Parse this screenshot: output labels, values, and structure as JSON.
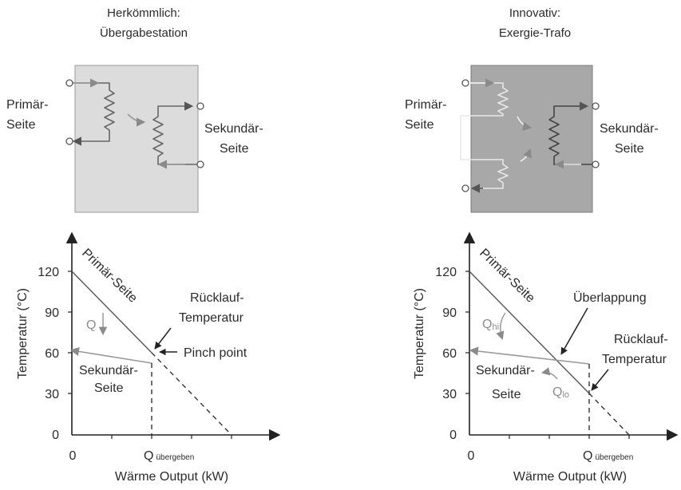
{
  "left_panel": {
    "title_line1": "Herkömmlich:",
    "title_line2": "Übergabestation",
    "primary_line1": "Primär-",
    "primary_line2": "Seite",
    "secondary_line1": "Sekundär-",
    "secondary_line2": "Seite",
    "box_fill": "#dcdcdc"
  },
  "right_panel": {
    "title_line1": "Innovativ:",
    "title_line2": "Exergie-Trafo",
    "primary_line1": "Primär-",
    "primary_line2": "Seite",
    "secondary_line1": "Sekundär-",
    "secondary_line2": "Seite",
    "box_fill": "#a8a8a8"
  },
  "charts": {
    "left": {
      "ylabel": "Temperatur (°C)",
      "xlabel": "Wärme Output (kW)",
      "y_ticks": [
        "0",
        "30",
        "60",
        "90",
        "120"
      ],
      "x_zero": "0",
      "x_q": "Q",
      "x_q_sub": "übergeben",
      "label_primary": "Primär-Seite",
      "label_secondary_line1": "Sekundär-",
      "label_secondary_line2": "Seite",
      "label_q": "Q",
      "label_return_line1": "Rücklauf-",
      "label_return_line2": "Temperatur",
      "label_pinch": "Pinch point"
    },
    "right": {
      "ylabel": "Temperatur (°C)",
      "xlabel": "Wärme Output (kW)",
      "y_ticks": [
        "0",
        "30",
        "60",
        "90",
        "120"
      ],
      "x_zero": "0",
      "x_q": "Q",
      "x_q_sub": "übergeben",
      "label_primary": "Primär-Seite",
      "label_secondary_line1": "Sekundär-",
      "label_secondary_line2": "Seite",
      "label_qhi": "Q",
      "label_qhi_sub": "hi",
      "label_qlo": "Q",
      "label_qlo_sub": "lo",
      "label_overlap": "Überlappung",
      "label_return_line1": "Rücklauf-",
      "label_return_line2": "Temperatur"
    }
  },
  "chart_data": [
    {
      "type": "line",
      "xlabel": "Wärme Output (kW)",
      "ylabel": "Temperatur (°C)",
      "ylim": [
        0,
        120
      ],
      "series": [
        {
          "name": "Primär-Seite",
          "x": [
            0,
            2,
            4
          ],
          "y": [
            120,
            60,
            0
          ]
        },
        {
          "name": "Sekundär-Seite",
          "x": [
            2,
            0
          ],
          "y": [
            52,
            60
          ]
        }
      ]
    },
    {
      "type": "line",
      "xlabel": "Wärme Output (kW)",
      "ylabel": "Temperatur (°C)",
      "ylim": [
        0,
        120
      ],
      "series": [
        {
          "name": "Primär-Seite",
          "x": [
            0,
            3,
            4
          ],
          "y": [
            120,
            30,
            0
          ]
        },
        {
          "name": "Sekundär-Seite",
          "x": [
            3,
            0
          ],
          "y": [
            50,
            60
          ]
        }
      ]
    }
  ],
  "colors": {
    "text": "#2b2b2b",
    "grey_line": "#9a9a9a",
    "grey_text": "#8c8c8c",
    "dark_line": "#555555"
  }
}
